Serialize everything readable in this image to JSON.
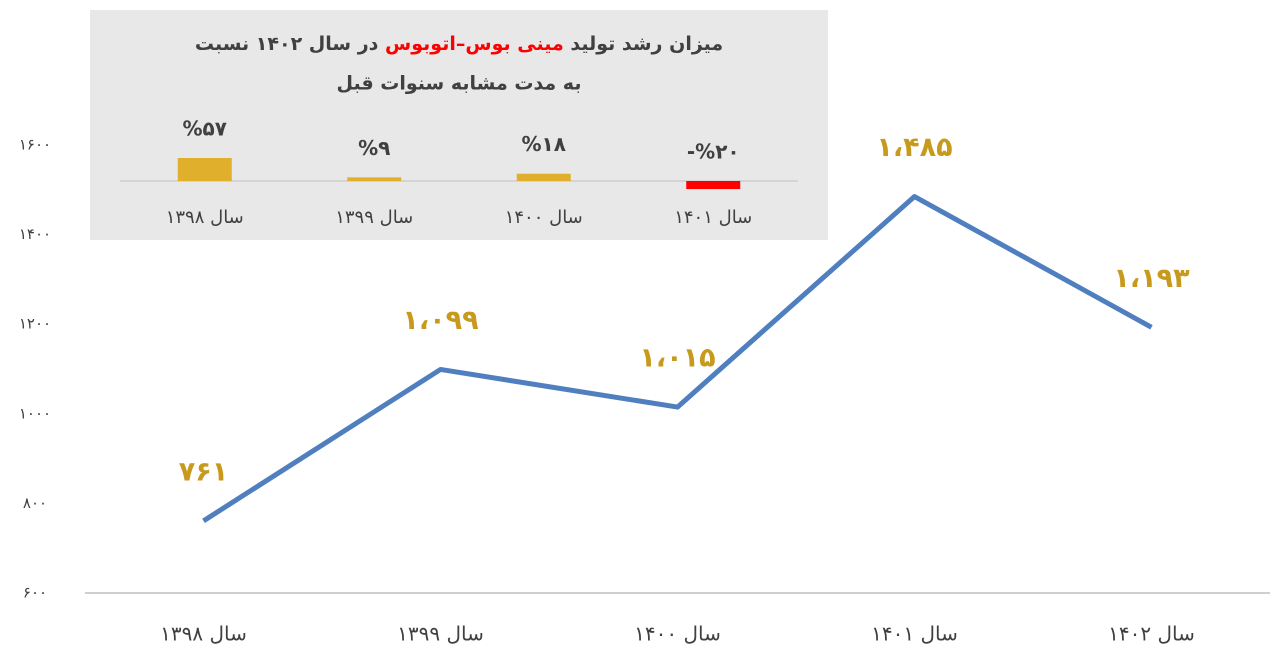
{
  "chart_data": [
    {
      "type": "line",
      "categories": [
        "سال ۱۳۹۸",
        "سال ۱۳۹۹",
        "سال ۱۴۰۰",
        "سال ۱۴۰۱",
        "سال ۱۴۰۲"
      ],
      "series": [
        {
          "color": "#4f7fbf",
          "values": [
            761,
            1099,
            1015,
            1485,
            1193
          ],
          "value_labels": [
            "۷۶۱",
            "۱،۰۹۹",
            "۱،۰۱۵",
            "۱،۴۸۵",
            "۱،۱۹۳"
          ]
        }
      ],
      "ylim": [
        600,
        1600
      ],
      "yticks": [
        {
          "value": 600,
          "label": "۶۰۰"
        },
        {
          "value": 800,
          "label": "۸۰۰"
        },
        {
          "value": 1000,
          "label": "۱۰۰۰"
        },
        {
          "value": 1200,
          "label": "۱۲۰۰"
        },
        {
          "value": 1400,
          "label": "۱۴۰۰"
        },
        {
          "value": 1600,
          "label": "۱۶۰۰"
        }
      ],
      "grid": false,
      "label_color": "#c79a1e"
    },
    {
      "type": "bar",
      "title": [
        "میزان رشد تولید",
        "مینی بوس–اتوبوس",
        "در سال ۱۴۰۲ نسبت",
        "به مدت مشابه سنوات قبل"
      ],
      "categories": [
        "سال ۱۳۹۸",
        "سال ۱۳۹۹",
        "سال ۱۴۰۰",
        "سال ۱۴۰۱"
      ],
      "values": [
        57,
        9,
        18,
        -20
      ],
      "value_labels": [
        "%۵۷",
        "%۹",
        "%۱۸",
        "-%۲۰"
      ],
      "colors": [
        "#e0b02c",
        "#e0b02c",
        "#e0b02c",
        "#ff0000"
      ]
    }
  ]
}
